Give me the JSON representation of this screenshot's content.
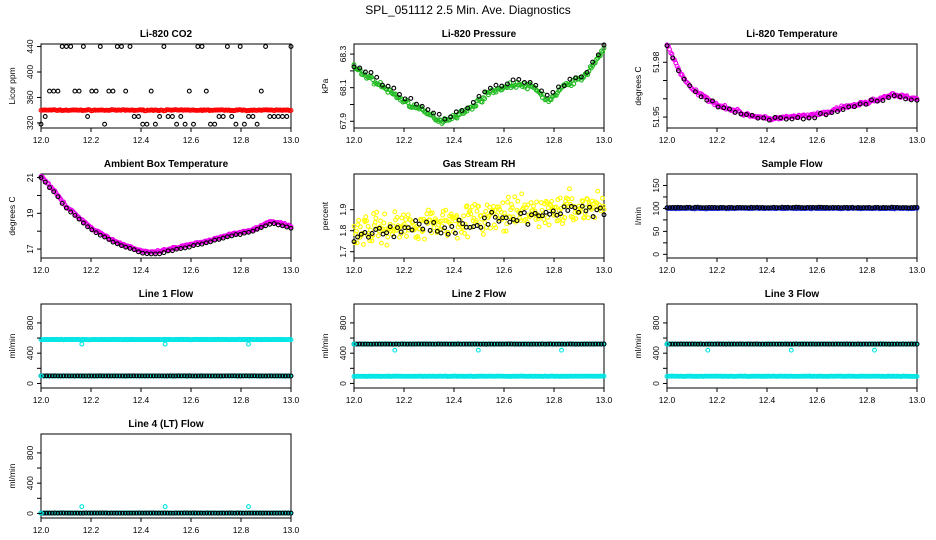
{
  "title": "SPL_051112  2.5 Min. Ave. Diagnostics",
  "chart_data": [
    {
      "type": "scatter",
      "title": "Li-820 CO2",
      "ylabel": "Licor ppm",
      "xlim": [
        12.0,
        13.0
      ],
      "ylim": [
        312,
        444
      ],
      "xticks": [
        "12.0",
        "12.2",
        "12.4",
        "12.6",
        "12.8",
        "13.0"
      ],
      "yticks": [
        320,
        360,
        400,
        440
      ],
      "yticks_minor": [],
      "series": [
        {
          "name": "Li-820 CO2 (fill)",
          "color": "#ff0000",
          "style": "band",
          "level": 340,
          "jitter": 1.2,
          "n": 170
        },
        {
          "name": "Li-820 CO2 (scatter)",
          "color": "#000000",
          "style": "outliers",
          "levels": [
            440,
            370,
            330,
            318
          ],
          "n": 60
        }
      ]
    },
    {
      "type": "scatter",
      "title": "Li-820 Pressure",
      "ylabel": "kPa",
      "xlim": [
        12.0,
        13.0
      ],
      "ylim": [
        67.86,
        68.36
      ],
      "xticks": [
        "12.0",
        "12.2",
        "12.4",
        "12.6",
        "12.8",
        "13.0"
      ],
      "yticks": [
        67.9,
        68.1,
        68.3
      ],
      "yticks_minor": [
        68.0,
        68.2
      ],
      "series": [
        {
          "name": "Li-820 Pressure (fill)",
          "color": "#22bb22",
          "style": "band",
          "curve": [
            [
              12.0,
              68.22
            ],
            [
              12.1,
              68.12
            ],
            [
              12.2,
              68.02
            ],
            [
              12.3,
              67.94
            ],
            [
              12.35,
              67.9
            ],
            [
              12.45,
              67.96
            ],
            [
              12.55,
              68.08
            ],
            [
              12.65,
              68.12
            ],
            [
              12.72,
              68.1
            ],
            [
              12.78,
              68.02
            ],
            [
              12.85,
              68.12
            ],
            [
              12.92,
              68.16
            ],
            [
              13.0,
              68.33
            ]
          ],
          "jitter": 0.025,
          "n": 200
        },
        {
          "name": "Li-820 Pressure (scatter)",
          "color": "#000000",
          "style": "offset",
          "curve": [
            [
              12.0,
              68.22
            ],
            [
              12.1,
              68.12
            ],
            [
              12.2,
              68.02
            ],
            [
              12.3,
              67.94
            ],
            [
              12.35,
              67.9
            ],
            [
              12.45,
              67.96
            ],
            [
              12.55,
              68.08
            ],
            [
              12.65,
              68.12
            ],
            [
              12.72,
              68.1
            ],
            [
              12.78,
              68.02
            ],
            [
              12.85,
              68.12
            ],
            [
              12.92,
              68.16
            ],
            [
              13.0,
              68.33
            ]
          ],
          "jitter": 0.03,
          "offset": 0.02,
          "n": 45
        }
      ]
    },
    {
      "type": "scatter",
      "title": "Li-820 Temperature",
      "ylabel": "degrees C",
      "xlim": [
        12.0,
        13.0
      ],
      "ylim": [
        51.944,
        51.99
      ],
      "xticks": [
        "12.0",
        "12.2",
        "12.4",
        "12.6",
        "12.8",
        "13.0"
      ],
      "yticks": [
        51.95,
        51.98
      ],
      "yticks_minor": [
        51.96,
        51.97
      ],
      "series": [
        {
          "name": "Li-820 Temperature (fill)",
          "color": "#ee00ee",
          "style": "band",
          "curve": [
            [
              12.0,
              51.99
            ],
            [
              12.05,
              51.975
            ],
            [
              12.1,
              51.965
            ],
            [
              12.2,
              51.957
            ],
            [
              12.3,
              51.952
            ],
            [
              12.4,
              51.949
            ],
            [
              12.5,
              51.95
            ],
            [
              12.6,
              51.951
            ],
            [
              12.7,
              51.955
            ],
            [
              12.8,
              51.958
            ],
            [
              12.85,
              51.96
            ],
            [
              12.9,
              51.962
            ],
            [
              13.0,
              51.96
            ]
          ],
          "jitter": 0.0015,
          "n": 200
        },
        {
          "name": "Li-820 Temperature (scatter)",
          "color": "#000000",
          "style": "offset",
          "curve": [
            [
              12.0,
              51.99
            ],
            [
              12.05,
              51.975
            ],
            [
              12.1,
              51.965
            ],
            [
              12.2,
              51.957
            ],
            [
              12.3,
              51.952
            ],
            [
              12.4,
              51.949
            ],
            [
              12.5,
              51.95
            ],
            [
              12.6,
              51.951
            ],
            [
              12.7,
              51.955
            ],
            [
              12.8,
              51.958
            ],
            [
              12.85,
              51.96
            ],
            [
              12.9,
              51.962
            ],
            [
              13.0,
              51.96
            ]
          ],
          "jitter": 0.0015,
          "offset": -0.0005,
          "n": 45
        }
      ]
    },
    {
      "type": "scatter",
      "title": "Ambient Box Temperature",
      "ylabel": "degrees C",
      "xlim": [
        12.0,
        13.0
      ],
      "ylim": [
        16.5,
        21.2
      ],
      "xticks": [
        "12.0",
        "12.2",
        "12.4",
        "12.6",
        "12.8",
        "13.0"
      ],
      "yticks": [
        17,
        19,
        21
      ],
      "yticks_minor": [
        18,
        20
      ],
      "series": [
        {
          "name": "Ambient Box Temperature (fill)",
          "color": "#ee00ee",
          "style": "band",
          "curve": [
            [
              12.0,
              21.1
            ],
            [
              12.05,
              20.3
            ],
            [
              12.1,
              19.4
            ],
            [
              12.2,
              18.2
            ],
            [
              12.3,
              17.4
            ],
            [
              12.4,
              16.9
            ],
            [
              12.45,
              16.8
            ],
            [
              12.55,
              17.1
            ],
            [
              12.65,
              17.4
            ],
            [
              12.75,
              17.8
            ],
            [
              12.85,
              18.1
            ],
            [
              12.92,
              18.55
            ],
            [
              12.97,
              18.4
            ],
            [
              13.0,
              18.25
            ]
          ],
          "jitter": 0.08,
          "n": 200
        },
        {
          "name": "Ambient Box Temperature (scatter)",
          "color": "#000000",
          "style": "offset",
          "curve": [
            [
              12.0,
              21.1
            ],
            [
              12.05,
              20.3
            ],
            [
              12.1,
              19.4
            ],
            [
              12.2,
              18.2
            ],
            [
              12.3,
              17.4
            ],
            [
              12.4,
              16.9
            ],
            [
              12.45,
              16.8
            ],
            [
              12.55,
              17.1
            ],
            [
              12.65,
              17.4
            ],
            [
              12.75,
              17.8
            ],
            [
              12.85,
              18.1
            ],
            [
              12.92,
              18.55
            ],
            [
              12.97,
              18.4
            ],
            [
              13.0,
              18.25
            ]
          ],
          "jitter": 0.05,
          "offset": -0.1,
          "n": 60
        }
      ]
    },
    {
      "type": "scatter",
      "title": "Gas Stream RH",
      "ylabel": "percent",
      "xlim": [
        12.0,
        13.0
      ],
      "ylim": [
        1.67,
        2.07
      ],
      "xticks": [
        "12.0",
        "12.2",
        "12.4",
        "12.6",
        "12.8",
        "13.0"
      ],
      "yticks": [
        1.7,
        1.8,
        1.9
      ],
      "yticks_minor": [],
      "series": [
        {
          "name": "Gas Stream RH (fill)",
          "color": "#ffff00",
          "style": "band",
          "curve": [
            [
              12.0,
              1.8
            ],
            [
              13.0,
              1.92
            ]
          ],
          "jitter": 0.11,
          "n": 320
        },
        {
          "name": "Gas Stream RH (scatter)",
          "color": "#000000",
          "style": "offset",
          "curve": [
            [
              12.0,
              1.8
            ],
            [
              13.0,
              1.92
            ]
          ],
          "jitter": 0.06,
          "offset": -0.02,
          "n": 70
        }
      ]
    },
    {
      "type": "scatter",
      "title": "Sample Flow",
      "ylabel": "l/min",
      "xlim": [
        12.0,
        13.0
      ],
      "ylim": [
        -8,
        175
      ],
      "xticks": [
        "12.0",
        "12.2",
        "12.4",
        "12.6",
        "12.8",
        "13.0"
      ],
      "yticks": [
        0,
        50,
        100,
        150
      ],
      "yticks_minor": [
        25,
        75,
        125
      ],
      "series": [
        {
          "name": "Sample Flow (fill)",
          "color": "#1e2fd6",
          "style": "band",
          "level": 100,
          "jitter": 1.5,
          "n": 200
        },
        {
          "name": "Sample Flow (scatter)",
          "color": "#000000",
          "style": "band",
          "level": 102,
          "jitter": 1.2,
          "n": 90
        }
      ]
    },
    {
      "type": "scatter",
      "title": "Line 1 Flow",
      "ylabel": "ml/min",
      "xlim": [
        12.0,
        13.0
      ],
      "ylim": [
        -60,
        1050
      ],
      "xticks": [
        "12.0",
        "12.2",
        "12.4",
        "12.6",
        "12.8",
        "13.0"
      ],
      "yticks": [
        0,
        400,
        800
      ],
      "yticks_minor": [
        200,
        600
      ],
      "series": [
        {
          "name": "Line 1 Flow (fill)",
          "color": "#00e5e5",
          "style": "band",
          "level": 580,
          "jitter": 4,
          "n": 200
        },
        {
          "name": "Line 1 Flow (low)",
          "color": "#00e5e5",
          "style": "band",
          "level": 100,
          "jitter": 3,
          "n": 200
        },
        {
          "name": "Line 1 Flow (scatter)",
          "color": "#000000",
          "style": "band",
          "level": 100,
          "jitter": 2,
          "n": 90
        },
        {
          "name": "Line 1 Flow (spikes)",
          "color": "#00e5e5",
          "style": "spikes",
          "points": [
            [
              12.0,
              100
            ],
            [
              12.163,
              520
            ],
            [
              12.497,
              520
            ],
            [
              12.83,
              520
            ]
          ],
          "n": 4
        }
      ]
    },
    {
      "type": "scatter",
      "title": "Line 2 Flow",
      "ylabel": "ml/min",
      "xlim": [
        12.0,
        13.0
      ],
      "ylim": [
        -60,
        1050
      ],
      "xticks": [
        "12.0",
        "12.2",
        "12.4",
        "12.6",
        "12.8",
        "13.0"
      ],
      "yticks": [
        0,
        400,
        800
      ],
      "yticks_minor": [
        200,
        600
      ],
      "series": [
        {
          "name": "Line 2 Flow (fill)",
          "color": "#00e5e5",
          "style": "band",
          "level": 520,
          "jitter": 4,
          "n": 200
        },
        {
          "name": "Line 2 Flow (low)",
          "color": "#00e5e5",
          "style": "band",
          "level": 95,
          "jitter": 3,
          "n": 200
        },
        {
          "name": "Line 2 Flow (scatter)",
          "color": "#000000",
          "style": "band",
          "level": 520,
          "jitter": 2,
          "n": 90
        },
        {
          "name": "Line 2 Flow (spikes)",
          "color": "#00e5e5",
          "style": "spikes",
          "points": [
            [
              12.0,
              520
            ],
            [
              12.163,
              440
            ],
            [
              12.497,
              440
            ],
            [
              12.83,
              440
            ]
          ],
          "n": 4
        }
      ]
    },
    {
      "type": "scatter",
      "title": "Line 3 Flow",
      "ylabel": "ml/min",
      "xlim": [
        12.0,
        13.0
      ],
      "ylim": [
        -60,
        1050
      ],
      "xticks": [
        "12.0",
        "12.2",
        "12.4",
        "12.6",
        "12.8",
        "13.0"
      ],
      "yticks": [
        0,
        400,
        800
      ],
      "yticks_minor": [
        200,
        600
      ],
      "series": [
        {
          "name": "Line 3 Flow (fill)",
          "color": "#00e5e5",
          "style": "band",
          "level": 520,
          "jitter": 4,
          "n": 200
        },
        {
          "name": "Line 3 Flow (low)",
          "color": "#00e5e5",
          "style": "band",
          "level": 95,
          "jitter": 3,
          "n": 200
        },
        {
          "name": "Line 3 Flow (scatter)",
          "color": "#000000",
          "style": "band",
          "level": 520,
          "jitter": 2,
          "n": 90
        },
        {
          "name": "Line 3 Flow (spikes)",
          "color": "#00e5e5",
          "style": "spikes",
          "points": [
            [
              12.0,
              520
            ],
            [
              12.163,
              440
            ],
            [
              12.497,
              440
            ],
            [
              12.83,
              440
            ]
          ],
          "n": 4
        }
      ]
    },
    {
      "type": "scatter",
      "title": "Line 4 (LT) Flow",
      "ylabel": "ml/min",
      "xlim": [
        12.0,
        13.0
      ],
      "ylim": [
        -60,
        1050
      ],
      "xticks": [
        "12.0",
        "12.2",
        "12.4",
        "12.6",
        "12.8",
        "13.0"
      ],
      "yticks": [
        0,
        400,
        800
      ],
      "yticks_minor": [
        200,
        600
      ],
      "series": [
        {
          "name": "Line 4 Flow (fill)",
          "color": "#00e5e5",
          "style": "band",
          "level": 5,
          "jitter": 3,
          "n": 200
        },
        {
          "name": "Line 4 Flow (scatter)",
          "color": "#000000",
          "style": "band",
          "level": 5,
          "jitter": 2,
          "n": 90
        },
        {
          "name": "Line 4 Flow (spikes)",
          "color": "#00e5e5",
          "style": "spikes",
          "points": [
            [
              12.0,
              5
            ],
            [
              12.163,
              90
            ],
            [
              12.497,
              90
            ],
            [
              12.83,
              90
            ]
          ],
          "n": 4
        }
      ]
    }
  ]
}
